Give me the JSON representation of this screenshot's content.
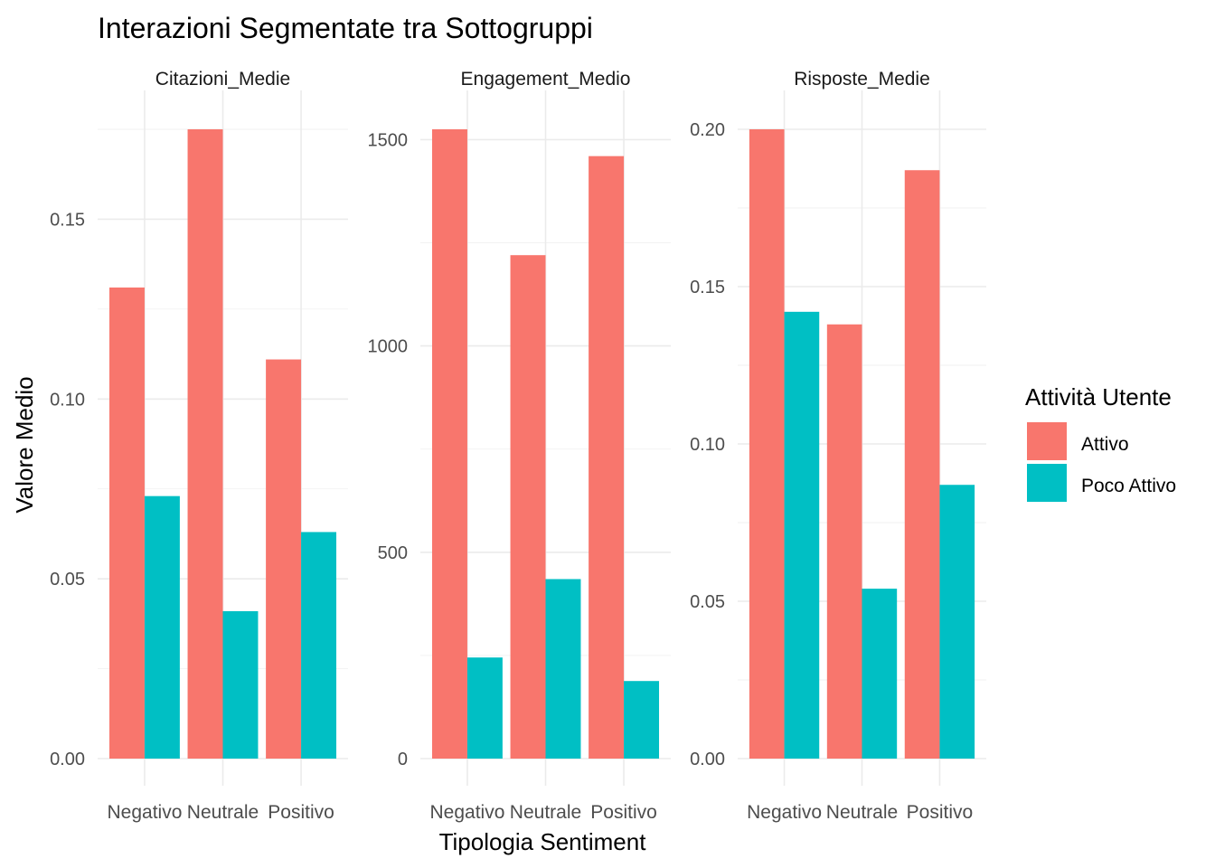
{
  "chart_data": {
    "type": "bar",
    "title": "Interazioni Segmentate tra Sottogruppi",
    "xlabel": "Tipologia Sentiment",
    "ylabel": "Valore Medio",
    "legend": {
      "title": "Attività Utente",
      "placement": "right",
      "entries": [
        {
          "name": "Attivo",
          "color": "#F8766D"
        },
        {
          "name": "Poco Attivo",
          "color": "#00BFC4"
        }
      ]
    },
    "grid": true,
    "categories": [
      "Negativo",
      "Neutrale",
      "Positivo"
    ],
    "panels": [
      {
        "name": "Citazioni_Medie",
        "ylim": [
          0,
          0.175
        ],
        "yticks": [
          0,
          0.05,
          0.1,
          0.15
        ],
        "ytick_labels": [
          "0.00",
          "0.05",
          "0.10",
          "0.15"
        ],
        "series": [
          {
            "name": "Attivo",
            "values": [
              0.131,
              0.175,
              0.111
            ]
          },
          {
            "name": "Poco Attivo",
            "values": [
              0.073,
              0.041,
              0.063
            ]
          }
        ]
      },
      {
        "name": "Engagement_Medio",
        "ylim": [
          0,
          1525
        ],
        "yticks": [
          0,
          500,
          1000,
          1500
        ],
        "ytick_labels": [
          "0",
          "500",
          "1000",
          "1500"
        ],
        "series": [
          {
            "name": "Attivo",
            "values": [
              1525,
              1220,
              1460
            ]
          },
          {
            "name": "Poco Attivo",
            "values": [
              245,
              435,
              188
            ]
          }
        ]
      },
      {
        "name": "Risposte_Medie",
        "ylim": [
          0,
          0.2
        ],
        "yticks": [
          0,
          0.05,
          0.1,
          0.15,
          0.2
        ],
        "ytick_labels": [
          "0.00",
          "0.05",
          "0.10",
          "0.15",
          "0.20"
        ],
        "series": [
          {
            "name": "Attivo",
            "values": [
              0.2,
              0.138,
              0.187
            ]
          },
          {
            "name": "Poco Attivo",
            "values": [
              0.142,
              0.054,
              0.087
            ]
          }
        ]
      }
    ]
  }
}
